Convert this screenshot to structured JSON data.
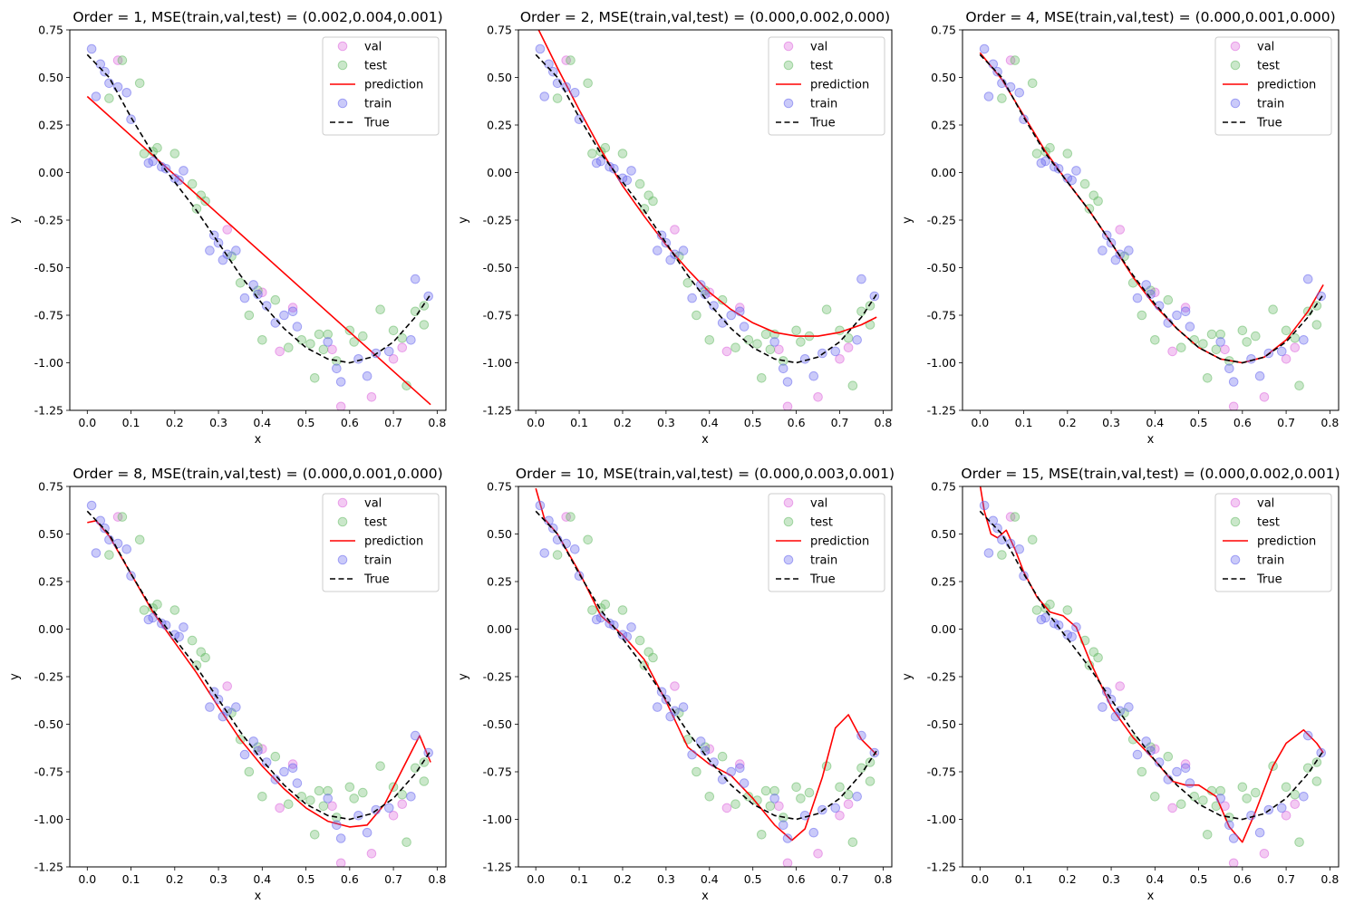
{
  "figure": {
    "background": "#ffffff",
    "colors": {
      "val": "#dd66dd",
      "test": "#66bb66",
      "train": "#6666ee",
      "prediction": "#ff0000",
      "true": "#000000"
    }
  },
  "chart_data": [
    {
      "type": "scatter",
      "title": "Order = 1, MSE(train,val,test) = (0.002,0.004,0.001)",
      "order": 1,
      "mse": {
        "train": 0.002,
        "val": 0.004,
        "test": 0.001
      },
      "xlabel": "x",
      "ylabel": "y",
      "xlim": [
        -0.04,
        0.82
      ],
      "ylim": [
        -1.25,
        0.75
      ],
      "xticks": [
        "0.0",
        "0.1",
        "0.2",
        "0.3",
        "0.4",
        "0.5",
        "0.6",
        "0.7",
        "0.8"
      ],
      "yticks": [
        "0.75",
        "0.50",
        "0.25",
        "0.00",
        "-0.25",
        "-0.50",
        "-0.75",
        "-1.00",
        "-1.25"
      ],
      "legend_position": "top-right",
      "legend": [
        "val",
        "test",
        "prediction",
        "train",
        "True"
      ],
      "prediction": {
        "name": "prediction",
        "x": [
          0.0,
          0.785
        ],
        "y": [
          0.4,
          -1.22
        ]
      }
    },
    {
      "type": "scatter",
      "title": "Order = 2, MSE(train,val,test) = (0.000,0.002,0.000)",
      "order": 2,
      "mse": {
        "train": 0.0,
        "val": 0.002,
        "test": 0.0
      },
      "xlabel": "x",
      "ylabel": "y",
      "xlim": [
        -0.04,
        0.82
      ],
      "ylim": [
        -1.25,
        0.75
      ],
      "xticks": [
        "0.0",
        "0.1",
        "0.2",
        "0.3",
        "0.4",
        "0.5",
        "0.6",
        "0.7",
        "0.8"
      ],
      "yticks": [
        "0.75",
        "0.50",
        "0.25",
        "0.00",
        "-0.25",
        "-0.50",
        "-0.75",
        "-1.00",
        "-1.25"
      ],
      "legend_position": "top-right",
      "legend": [
        "val",
        "test",
        "prediction",
        "train",
        "True"
      ],
      "prediction": {
        "name": "prediction",
        "x": [
          0.0,
          0.05,
          0.1,
          0.15,
          0.2,
          0.25,
          0.3,
          0.35,
          0.4,
          0.45,
          0.5,
          0.55,
          0.6,
          0.65,
          0.7,
          0.75,
          0.785
        ],
        "y": [
          0.78,
          0.55,
          0.33,
          0.12,
          -0.07,
          -0.23,
          -0.38,
          -0.51,
          -0.63,
          -0.72,
          -0.79,
          -0.84,
          -0.86,
          -0.86,
          -0.84,
          -0.8,
          -0.76
        ]
      }
    },
    {
      "type": "scatter",
      "title": "Order = 4, MSE(train,val,test) = (0.000,0.001,0.000)",
      "order": 4,
      "mse": {
        "train": 0.0,
        "val": 0.001,
        "test": 0.0
      },
      "xlabel": "x",
      "ylabel": "y",
      "xlim": [
        -0.04,
        0.82
      ],
      "ylim": [
        -1.25,
        0.75
      ],
      "xticks": [
        "0.0",
        "0.1",
        "0.2",
        "0.3",
        "0.4",
        "0.5",
        "0.6",
        "0.7",
        "0.8"
      ],
      "yticks": [
        "0.75",
        "0.50",
        "0.25",
        "0.00",
        "-0.25",
        "-0.50",
        "-0.75",
        "-1.00",
        "-1.25"
      ],
      "legend_position": "top-right",
      "legend": [
        "val",
        "test",
        "prediction",
        "train",
        "True"
      ],
      "prediction": {
        "name": "prediction",
        "x": [
          0.0,
          0.05,
          0.1,
          0.15,
          0.2,
          0.25,
          0.3,
          0.35,
          0.4,
          0.45,
          0.5,
          0.55,
          0.6,
          0.65,
          0.7,
          0.75,
          0.785
        ],
        "y": [
          0.63,
          0.49,
          0.3,
          0.11,
          -0.05,
          -0.2,
          -0.37,
          -0.55,
          -0.7,
          -0.82,
          -0.92,
          -0.98,
          -1.0,
          -0.97,
          -0.88,
          -0.73,
          -0.59
        ]
      }
    },
    {
      "type": "scatter",
      "title": "Order = 8, MSE(train,val,test) = (0.000,0.001,0.000)",
      "order": 8,
      "mse": {
        "train": 0.0,
        "val": 0.001,
        "test": 0.0
      },
      "xlabel": "x",
      "ylabel": "y",
      "xlim": [
        -0.04,
        0.82
      ],
      "ylim": [
        -1.25,
        0.75
      ],
      "xticks": [
        "0.0",
        "0.1",
        "0.2",
        "0.3",
        "0.4",
        "0.5",
        "0.6",
        "0.7",
        "0.8"
      ],
      "yticks": [
        "0.75",
        "0.50",
        "0.25",
        "0.00",
        "-0.25",
        "-0.50",
        "-0.75",
        "-1.00",
        "-1.25"
      ],
      "legend_position": "top-right",
      "legend": [
        "val",
        "test",
        "prediction",
        "train",
        "True"
      ],
      "prediction": {
        "name": "prediction",
        "x": [
          0.0,
          0.02,
          0.05,
          0.1,
          0.15,
          0.2,
          0.25,
          0.3,
          0.35,
          0.4,
          0.45,
          0.5,
          0.55,
          0.6,
          0.64,
          0.68,
          0.72,
          0.76,
          0.785
        ],
        "y": [
          0.56,
          0.57,
          0.49,
          0.29,
          0.09,
          -0.07,
          -0.23,
          -0.41,
          -0.58,
          -0.72,
          -0.84,
          -0.94,
          -1.01,
          -1.04,
          -1.03,
          -0.92,
          -0.74,
          -0.56,
          -0.7
        ]
      }
    },
    {
      "type": "scatter",
      "title": "Order = 10, MSE(train,val,test) = (0.000,0.003,0.001)",
      "order": 10,
      "mse": {
        "train": 0.0,
        "val": 0.003,
        "test": 0.001
      },
      "xlabel": "x",
      "ylabel": "y",
      "xlim": [
        -0.04,
        0.82
      ],
      "ylim": [
        -1.25,
        0.75
      ],
      "xticks": [
        "0.0",
        "0.1",
        "0.2",
        "0.3",
        "0.4",
        "0.5",
        "0.6",
        "0.7",
        "0.8"
      ],
      "yticks": [
        "0.75",
        "0.50",
        "0.25",
        "0.00",
        "-0.25",
        "-0.50",
        "-0.75",
        "-1.00",
        "-1.25"
      ],
      "legend_position": "top-right",
      "legend": [
        "val",
        "test",
        "prediction",
        "train",
        "True"
      ],
      "prediction": {
        "name": "prediction",
        "x": [
          0.0,
          0.02,
          0.05,
          0.1,
          0.15,
          0.2,
          0.25,
          0.3,
          0.35,
          0.4,
          0.45,
          0.5,
          0.55,
          0.59,
          0.62,
          0.66,
          0.69,
          0.72,
          0.75,
          0.785
        ],
        "y": [
          0.74,
          0.58,
          0.5,
          0.3,
          0.07,
          -0.03,
          -0.16,
          -0.38,
          -0.62,
          -0.71,
          -0.77,
          -0.89,
          -1.03,
          -1.11,
          -1.05,
          -0.78,
          -0.52,
          -0.45,
          -0.58,
          -0.66
        ]
      }
    },
    {
      "type": "scatter",
      "title": "Order = 15, MSE(train,val,test) = (0.000,0.002,0.001)",
      "order": 15,
      "mse": {
        "train": 0.0,
        "val": 0.002,
        "test": 0.001
      },
      "xlabel": "x",
      "ylabel": "y",
      "xlim": [
        -0.04,
        0.82
      ],
      "ylim": [
        -1.25,
        0.75
      ],
      "xticks": [
        "0.0",
        "0.1",
        "0.2",
        "0.3",
        "0.4",
        "0.5",
        "0.6",
        "0.7",
        "0.8"
      ],
      "yticks": [
        "0.75",
        "0.50",
        "0.25",
        "0.00",
        "-0.25",
        "-0.50",
        "-0.75",
        "-1.00",
        "-1.25"
      ],
      "legend_position": "top-right",
      "legend": [
        "val",
        "test",
        "prediction",
        "train",
        "True"
      ],
      "prediction": {
        "name": "prediction",
        "x": [
          0.0,
          0.01,
          0.025,
          0.04,
          0.06,
          0.08,
          0.1,
          0.13,
          0.16,
          0.19,
          0.22,
          0.25,
          0.3,
          0.35,
          0.4,
          0.44,
          0.47,
          0.5,
          0.54,
          0.57,
          0.6,
          0.63,
          0.67,
          0.7,
          0.74,
          0.77,
          0.785
        ],
        "y": [
          0.76,
          0.62,
          0.5,
          0.48,
          0.52,
          0.42,
          0.3,
          0.17,
          0.09,
          0.07,
          0.01,
          -0.16,
          -0.41,
          -0.57,
          -0.69,
          -0.8,
          -0.82,
          -0.82,
          -0.88,
          -1.04,
          -1.12,
          -0.96,
          -0.72,
          -0.6,
          -0.53,
          -0.6,
          -0.65
        ]
      }
    }
  ],
  "scatter": {
    "train": {
      "name": "train",
      "x": [
        0.01,
        0.02,
        0.03,
        0.04,
        0.05,
        0.07,
        0.09,
        0.1,
        0.14,
        0.15,
        0.17,
        0.18,
        0.2,
        0.21,
        0.22,
        0.28,
        0.29,
        0.3,
        0.31,
        0.32,
        0.34,
        0.36,
        0.38,
        0.39,
        0.41,
        0.43,
        0.45,
        0.47,
        0.48,
        0.55,
        0.57,
        0.58,
        0.62,
        0.64,
        0.66,
        0.69,
        0.74,
        0.75,
        0.78
      ],
      "y": [
        0.65,
        0.4,
        0.57,
        0.53,
        0.47,
        0.45,
        0.42,
        0.28,
        0.05,
        0.06,
        0.03,
        0.02,
        -0.03,
        -0.04,
        0.01,
        -0.41,
        -0.33,
        -0.37,
        -0.46,
        -0.43,
        -0.41,
        -0.66,
        -0.59,
        -0.64,
        -0.7,
        -0.79,
        -0.75,
        -0.73,
        -0.81,
        -0.89,
        -1.03,
        -1.1,
        -0.98,
        -1.07,
        -0.95,
        -0.94,
        -0.88,
        -0.56,
        -0.65
      ]
    },
    "val": {
      "name": "val",
      "x": [
        0.07,
        0.32,
        0.4,
        0.44,
        0.47,
        0.56,
        0.58,
        0.65,
        0.7,
        0.72
      ],
      "y": [
        0.59,
        -0.3,
        -0.63,
        -0.94,
        -0.71,
        -0.93,
        -1.23,
        -1.18,
        -0.98,
        -0.92
      ],
      "bias_note": ""
    },
    "test": {
      "name": "test",
      "x": [
        0.05,
        0.08,
        0.12,
        0.13,
        0.15,
        0.16,
        0.2,
        0.24,
        0.25,
        0.26,
        0.27,
        0.33,
        0.35,
        0.37,
        0.39,
        0.4,
        0.43,
        0.46,
        0.49,
        0.51,
        0.52,
        0.53,
        0.54,
        0.55,
        0.57,
        0.6,
        0.61,
        0.63,
        0.67,
        0.7,
        0.72,
        0.73,
        0.75,
        0.77,
        0.77
      ],
      "y": [
        0.39,
        0.59,
        0.47,
        0.1,
        0.11,
        0.13,
        0.1,
        -0.06,
        -0.19,
        -0.12,
        -0.15,
        -0.44,
        -0.58,
        -0.75,
        -0.62,
        -0.88,
        -0.67,
        -0.92,
        -0.88,
        -0.9,
        -1.08,
        -0.85,
        -0.93,
        -0.85,
        -0.99,
        -0.83,
        -0.89,
        -0.86,
        -0.72,
        -0.83,
        -0.87,
        -1.12,
        -0.73,
        -0.8,
        -0.7
      ]
    }
  },
  "true_curve": {
    "name": "True",
    "x": [
      0.0,
      0.05,
      0.1,
      0.15,
      0.2,
      0.25,
      0.3,
      0.35,
      0.4,
      0.45,
      0.5,
      0.55,
      0.6,
      0.65,
      0.7,
      0.75,
      0.785
    ],
    "y": [
      0.62,
      0.5,
      0.29,
      0.1,
      -0.05,
      -0.2,
      -0.37,
      -0.54,
      -0.69,
      -0.82,
      -0.92,
      -0.98,
      -1.0,
      -0.97,
      -0.89,
      -0.76,
      -0.64
    ]
  }
}
